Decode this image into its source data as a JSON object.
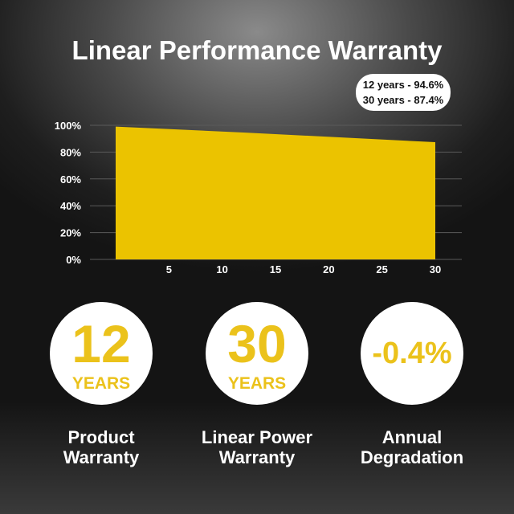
{
  "title": "Linear Performance Warranty",
  "callout": {
    "line1": "12 years - 94.6%",
    "line2": "30 years - 87.4%"
  },
  "chart_data": {
    "type": "area",
    "x": [
      0,
      12,
      30
    ],
    "y": [
      99,
      94.6,
      87.4
    ],
    "xlim": [
      0,
      30
    ],
    "ylim": [
      0,
      100
    ],
    "xticks": [
      5,
      10,
      15,
      20,
      25,
      30
    ],
    "yticks": [
      0,
      20,
      40,
      60,
      80,
      100
    ],
    "ytick_labels": [
      "0%",
      "20%",
      "40%",
      "60%",
      "80%",
      "100%"
    ],
    "grid": "horizontal",
    "fill_color": "#ebc300",
    "legend": "none"
  },
  "stats": [
    {
      "value": "12",
      "unit": "YEARS",
      "label_line1": "Product",
      "label_line2": "Warranty"
    },
    {
      "value": "30",
      "unit": "YEARS",
      "label_line1": "Linear Power",
      "label_line2": "Warranty"
    },
    {
      "value": "-0.4%",
      "unit": "",
      "label_line1": "Annual",
      "label_line2": "Degradation"
    }
  ],
  "accent_color": "#ebc21b"
}
